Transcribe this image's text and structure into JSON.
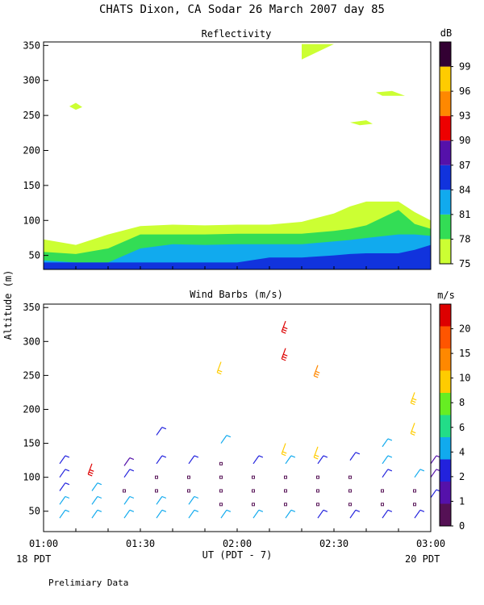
{
  "figure": {
    "title": "CHATS Dixon, CA   Sodar   26 March 2007   day  85",
    "ylabel": "Altitude (m)",
    "xlabel": "UT  (PDT - 7)",
    "left_date": "18 PDT",
    "right_date": "20 PDT",
    "footer": "Prelimiary Data"
  },
  "chart_data": [
    {
      "type": "area",
      "title": "Reflectivity",
      "ylim": [
        30,
        355
      ],
      "xlim": [
        "01:00",
        "03:00"
      ],
      "x_ticks": [
        "01:00",
        "01:30",
        "02:00",
        "02:30",
        "03:00"
      ],
      "y_ticks": [
        50,
        100,
        150,
        200,
        250,
        300,
        350
      ],
      "colorbar": {
        "unit": "dB",
        "levels": [
          "75",
          "78",
          "81",
          "84",
          "87",
          "90",
          "93",
          "96",
          "99"
        ],
        "colors": [
          "#ccff33",
          "#33dd55",
          "#11aaee",
          "#1133dd",
          "#5511aa",
          "#ee0000",
          "#ff8800",
          "#ffcc00",
          "#330033"
        ]
      },
      "x_minutes": [
        0,
        10,
        20,
        30,
        40,
        50,
        60,
        70,
        80,
        90,
        95,
        100,
        110,
        115,
        120
      ],
      "contours": [
        {
          "level": "75",
          "top": [
            73,
            65,
            80,
            92,
            94,
            93,
            94,
            94,
            98,
            110,
            120,
            127,
            127,
            112,
            100
          ]
        },
        {
          "level": "78",
          "top": [
            55,
            52,
            60,
            80,
            80,
            80,
            81,
            81,
            81,
            85,
            88,
            93,
            115,
            95,
            88
          ]
        },
        {
          "level": "81",
          "top": [
            43,
            40,
            40,
            60,
            66,
            65,
            66,
            66,
            66,
            70,
            72,
            75,
            80,
            80,
            78
          ]
        },
        {
          "level": "84",
          "top": [
            40,
            40,
            40,
            40,
            40,
            40,
            40,
            47,
            47,
            50,
            52,
            53,
            53,
            58,
            65
          ]
        }
      ],
      "patches": [
        {
          "level": "75",
          "points": [
            [
              80,
              352
            ],
            [
              90,
              352
            ],
            [
              80,
              330
            ],
            [
              80,
              322
            ]
          ]
        },
        {
          "level": "75",
          "points": [
            [
              103,
              283
            ],
            [
              108,
              285
            ],
            [
              112,
              278
            ],
            [
              105,
              278
            ]
          ]
        },
        {
          "level": "75",
          "points": [
            [
              95,
              240
            ],
            [
              100,
              243
            ],
            [
              102,
              238
            ],
            [
              98,
              236
            ]
          ]
        },
        {
          "level": "75",
          "points": [
            [
              8,
              263
            ],
            [
              10,
              268
            ],
            [
              12,
              262
            ],
            [
              10,
              258
            ]
          ]
        }
      ]
    },
    {
      "type": "scatter",
      "title": "Wind Barbs (m/s)",
      "ylim": [
        20,
        355
      ],
      "xlim": [
        "01:00",
        "03:00"
      ],
      "x_ticks": [
        "01:00",
        "01:30",
        "02:00",
        "02:30",
        "03:00"
      ],
      "y_ticks": [
        50,
        100,
        150,
        200,
        250,
        300,
        350
      ],
      "colorbar": {
        "unit": "m/s",
        "levels": [
          "0",
          "1",
          "2",
          "4",
          "6",
          "8",
          "10",
          "15",
          "20"
        ],
        "colors": [
          "#551155",
          "#5511aa",
          "#2222dd",
          "#11aaee",
          "#22dd88",
          "#66ee22",
          "#ffcc00",
          "#ff8800",
          "#ff5500",
          "#dd0000"
        ]
      },
      "barbs": [
        {
          "x": 5,
          "y": 40,
          "speed": 4
        },
        {
          "x": 5,
          "y": 60,
          "speed": 4
        },
        {
          "x": 5,
          "y": 80,
          "speed": 2
        },
        {
          "x": 5,
          "y": 100,
          "speed": 2
        },
        {
          "x": 5,
          "y": 120,
          "speed": 3
        },
        {
          "x": 15,
          "y": 40,
          "speed": 4
        },
        {
          "x": 15,
          "y": 60,
          "speed": 4
        },
        {
          "x": 15,
          "y": 80,
          "speed": 4
        },
        {
          "x": 15,
          "y": 120,
          "speed": 20
        },
        {
          "x": 25,
          "y": 40,
          "speed": 4
        },
        {
          "x": 25,
          "y": 60,
          "speed": 4
        },
        {
          "x": 25,
          "y": 80,
          "speed": 0
        },
        {
          "x": 25,
          "y": 100,
          "speed": 3
        },
        {
          "x": 25,
          "y": 117,
          "speed": 1
        },
        {
          "x": 35,
          "y": 40,
          "speed": 4
        },
        {
          "x": 35,
          "y": 60,
          "speed": 4
        },
        {
          "x": 35,
          "y": 80,
          "speed": 0
        },
        {
          "x": 35,
          "y": 100,
          "speed": 0
        },
        {
          "x": 35,
          "y": 120,
          "speed": 3
        },
        {
          "x": 35,
          "y": 162,
          "speed": 3
        },
        {
          "x": 45,
          "y": 40,
          "speed": 4
        },
        {
          "x": 45,
          "y": 60,
          "speed": 4
        },
        {
          "x": 45,
          "y": 80,
          "speed": 0
        },
        {
          "x": 45,
          "y": 100,
          "speed": 0
        },
        {
          "x": 45,
          "y": 120,
          "speed": 3
        },
        {
          "x": 55,
          "y": 40,
          "speed": 4
        },
        {
          "x": 55,
          "y": 60,
          "speed": 0
        },
        {
          "x": 55,
          "y": 80,
          "speed": 0
        },
        {
          "x": 55,
          "y": 100,
          "speed": 0
        },
        {
          "x": 55,
          "y": 120,
          "speed": 0
        },
        {
          "x": 55,
          "y": 150,
          "speed": 4
        },
        {
          "x": 55,
          "y": 270,
          "speed": 10
        },
        {
          "x": 65,
          "y": 40,
          "speed": 4
        },
        {
          "x": 65,
          "y": 60,
          "speed": 0
        },
        {
          "x": 65,
          "y": 80,
          "speed": 0
        },
        {
          "x": 65,
          "y": 100,
          "speed": 0
        },
        {
          "x": 65,
          "y": 120,
          "speed": 3
        },
        {
          "x": 75,
          "y": 40,
          "speed": 4
        },
        {
          "x": 75,
          "y": 60,
          "speed": 0
        },
        {
          "x": 75,
          "y": 80,
          "speed": 0
        },
        {
          "x": 75,
          "y": 100,
          "speed": 0
        },
        {
          "x": 75,
          "y": 120,
          "speed": 4
        },
        {
          "x": 75,
          "y": 150,
          "speed": 12
        },
        {
          "x": 75,
          "y": 290,
          "speed": 20
        },
        {
          "x": 75,
          "y": 330,
          "speed": 20
        },
        {
          "x": 85,
          "y": 40,
          "speed": 3
        },
        {
          "x": 85,
          "y": 60,
          "speed": 0
        },
        {
          "x": 85,
          "y": 80,
          "speed": 0
        },
        {
          "x": 85,
          "y": 100,
          "speed": 0
        },
        {
          "x": 85,
          "y": 120,
          "speed": 2
        },
        {
          "x": 85,
          "y": 145,
          "speed": 10
        },
        {
          "x": 85,
          "y": 265,
          "speed": 16
        },
        {
          "x": 95,
          "y": 40,
          "speed": 3
        },
        {
          "x": 95,
          "y": 60,
          "speed": 0
        },
        {
          "x": 95,
          "y": 80,
          "speed": 0
        },
        {
          "x": 95,
          "y": 100,
          "speed": 0
        },
        {
          "x": 95,
          "y": 125,
          "speed": 3
        },
        {
          "x": 105,
          "y": 40,
          "speed": 3
        },
        {
          "x": 105,
          "y": 60,
          "speed": 0
        },
        {
          "x": 105,
          "y": 80,
          "speed": 0
        },
        {
          "x": 105,
          "y": 100,
          "speed": 3
        },
        {
          "x": 105,
          "y": 120,
          "speed": 4
        },
        {
          "x": 105,
          "y": 145,
          "speed": 4
        },
        {
          "x": 115,
          "y": 40,
          "speed": 3
        },
        {
          "x": 115,
          "y": 60,
          "speed": 0
        },
        {
          "x": 115,
          "y": 80,
          "speed": 0
        },
        {
          "x": 115,
          "y": 100,
          "speed": 4
        },
        {
          "x": 115,
          "y": 180,
          "speed": 12
        },
        {
          "x": 115,
          "y": 225,
          "speed": 14
        },
        {
          "x": 120,
          "y": 70,
          "speed": 2
        },
        {
          "x": 120,
          "y": 100,
          "speed": 1
        },
        {
          "x": 120,
          "y": 120,
          "speed": 1
        }
      ]
    }
  ]
}
